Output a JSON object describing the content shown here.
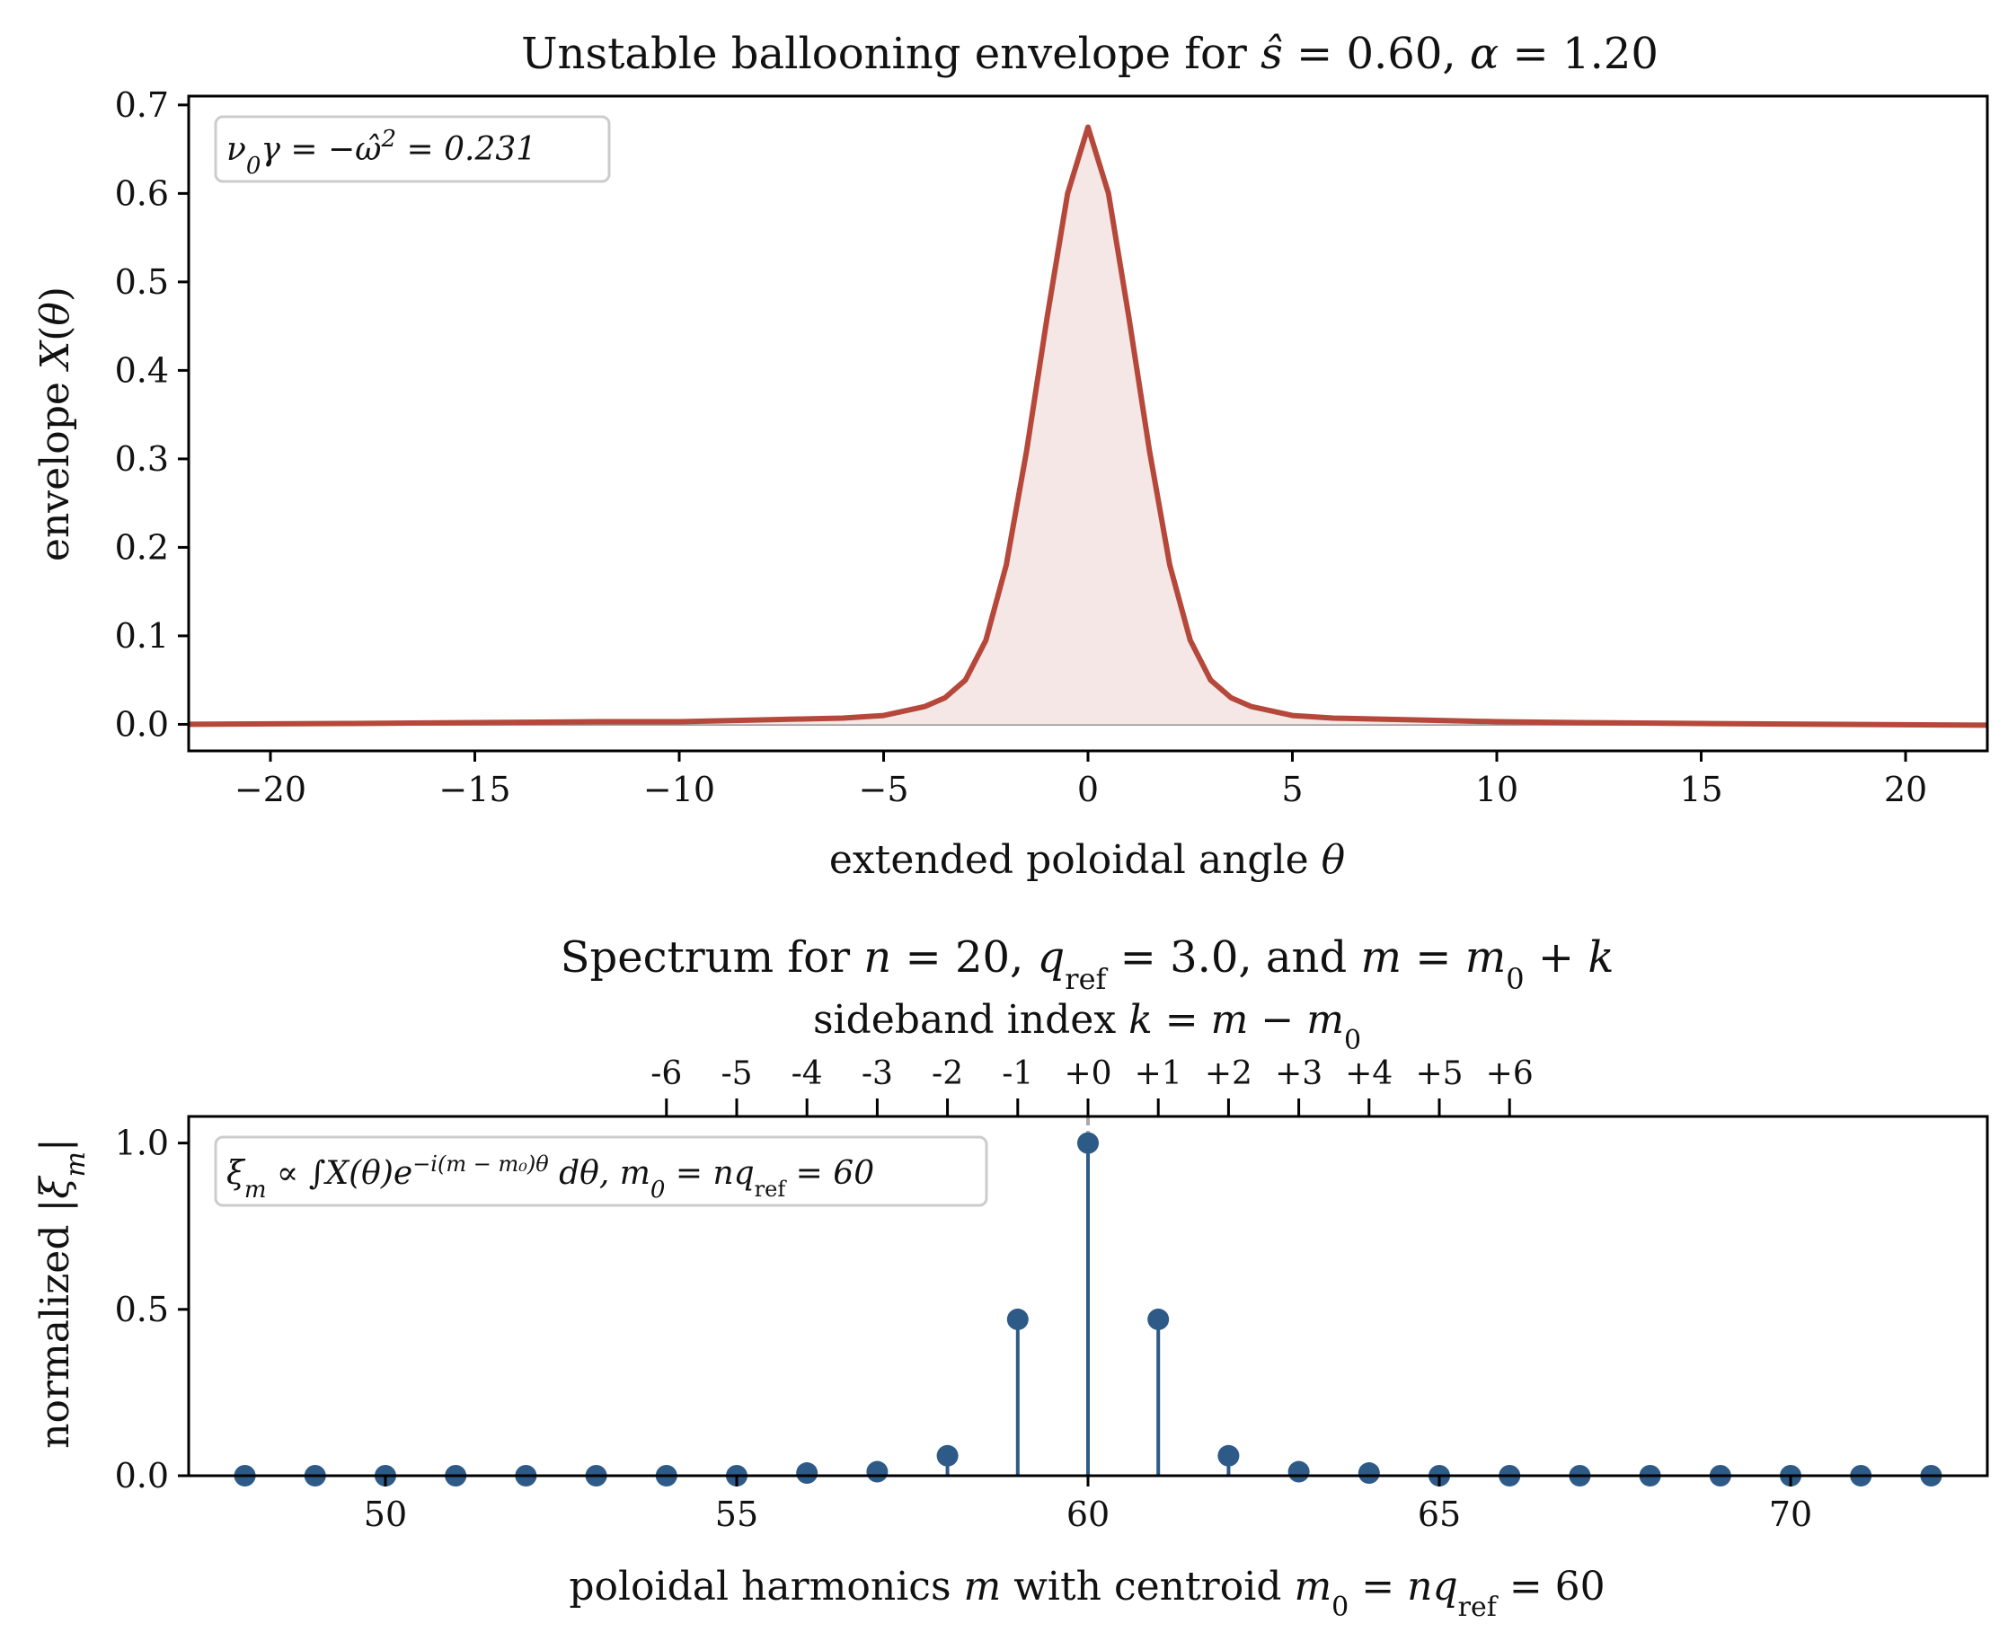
{
  "chart_data": [
    {
      "type": "line",
      "title": "Unstable ballooning envelope for ŝ = 0.60, α = 1.20",
      "xlabel": "extended poloidal angle θ",
      "ylabel": "envelope X(θ)",
      "xlim": [
        -22,
        22
      ],
      "ylim": [
        -0.03,
        0.71
      ],
      "xticks": [
        -20,
        -15,
        -10,
        -5,
        0,
        5,
        10,
        15,
        20
      ],
      "xtick_labels": [
        "−20",
        "−15",
        "−10",
        "−5",
        "0",
        "5",
        "10",
        "15",
        "20"
      ],
      "yticks": [
        0.0,
        0.1,
        0.2,
        0.3,
        0.4,
        0.5,
        0.6,
        0.7
      ],
      "ytick_labels": [
        "0.0",
        "0.1",
        "0.2",
        "0.3",
        "0.4",
        "0.5",
        "0.6",
        "0.7"
      ],
      "annotation": "ν₀γ = −ω̂² = 0.231",
      "series": [
        {
          "color": "#b5483b",
          "fill": "#f5e7e5",
          "x": [
            -22,
            -18,
            -15,
            -12,
            -10,
            -8,
            -7,
            -6,
            -5,
            -4,
            -3.5,
            -3,
            -2.5,
            -2,
            -1.5,
            -1,
            -0.5,
            0,
            0.5,
            1,
            1.5,
            2,
            2.5,
            3,
            3.5,
            4,
            5,
            6,
            7,
            8,
            10,
            12,
            15,
            18,
            22
          ],
          "y": [
            0.0,
            0.001,
            0.002,
            0.003,
            0.003,
            0.005,
            0.006,
            0.007,
            0.01,
            0.02,
            0.03,
            0.05,
            0.095,
            0.18,
            0.31,
            0.46,
            0.6,
            0.675,
            0.6,
            0.46,
            0.31,
            0.18,
            0.095,
            0.05,
            0.03,
            0.02,
            0.01,
            0.007,
            0.006,
            0.005,
            0.003,
            0.002,
            0.001,
            0.0,
            -0.001
          ]
        }
      ]
    },
    {
      "type": "scatter",
      "subtype": "stem",
      "title": "Spectrum for n = 20, q_ref = 3.0, and m = m₀ + k",
      "secondary_xlabel": "sideband index k = m − m₀",
      "secondary_xtick_labels": [
        "-6",
        "-5",
        "-4",
        "-3",
        "-2",
        "-1",
        "+0",
        "+1",
        "+2",
        "+3",
        "+4",
        "+5",
        "+6"
      ],
      "xlabel": "poloidal harmonics m with centroid m₀ = nq_ref = 60",
      "ylabel": "normalized |ξm|",
      "xlim": [
        47.2,
        72.8
      ],
      "ylim": [
        0.0,
        1.08
      ],
      "xticks": [
        50,
        55,
        60,
        65,
        70
      ],
      "xtick_labels": [
        "50",
        "55",
        "60",
        "65",
        "70"
      ],
      "yticks": [
        0.0,
        0.5,
        1.0
      ],
      "ytick_labels": [
        "0.0",
        "0.5",
        "1.0"
      ],
      "annotation": "ξm ∝ ∫X(θ)e^{−i(m − m₀)θ} dθ,  m₀ = nq_ref = 60",
      "center": 60,
      "series": [
        {
          "color": "#2e5a87",
          "x": [
            48,
            49,
            50,
            51,
            52,
            53,
            54,
            55,
            56,
            57,
            58,
            59,
            60,
            61,
            62,
            63,
            64,
            65,
            66,
            67,
            68,
            69,
            70,
            71,
            72
          ],
          "y": [
            0.0,
            0.0,
            0.0,
            0.0,
            0.0,
            0.0,
            0.0,
            0.0,
            0.008,
            0.012,
            0.06,
            0.47,
            1.0,
            0.47,
            0.06,
            0.012,
            0.008,
            0.0,
            0.0,
            0.0,
            0.0,
            0.0,
            0.0,
            0.0,
            0.0
          ]
        }
      ]
    }
  ]
}
